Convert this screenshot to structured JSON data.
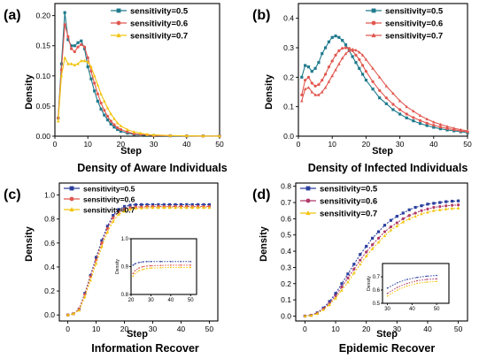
{
  "colors": {
    "s05": "#1f7a8c",
    "s06": "#e0574f",
    "s07": "#f2c40f",
    "s05_dark": "#2b3f9e",
    "s06_dark": "#b03a6a"
  },
  "chart_data": [
    {
      "id": "a",
      "type": "line",
      "panel_label": "(a)",
      "caption": "Density of Aware Individuals",
      "xlabel": "Step",
      "ylabel": "Density",
      "xlim": [
        0,
        50
      ],
      "ylim": [
        0,
        0.22
      ],
      "xticks": [
        "0",
        "10",
        "20",
        "30",
        "40",
        "50"
      ],
      "yticks": [
        "0.00",
        "0.05",
        "0.10",
        "0.15",
        "0.20"
      ],
      "legend_position": "top-right",
      "series": [
        {
          "name": "sensitivity=0.5",
          "marker": "square",
          "color": "#1f7a8c",
          "x": [
            1,
            2,
            3,
            4,
            5,
            6,
            7,
            8,
            9,
            10,
            11,
            12,
            13,
            14,
            15,
            16,
            17,
            18,
            19,
            20,
            22,
            24,
            26,
            28,
            30,
            35,
            40,
            45,
            50
          ],
          "y": [
            0.03,
            0.12,
            0.205,
            0.16,
            0.15,
            0.15,
            0.155,
            0.158,
            0.145,
            0.115,
            0.095,
            0.075,
            0.058,
            0.045,
            0.035,
            0.027,
            0.02,
            0.015,
            0.011,
            0.008,
            0.005,
            0.003,
            0.002,
            0.001,
            0.001,
            0.0005,
            0.0003,
            0.0002,
            0.0001
          ]
        },
        {
          "name": "sensitivity=0.6",
          "marker": "circle",
          "color": "#e0574f",
          "x": [
            1,
            2,
            3,
            4,
            5,
            6,
            7,
            8,
            9,
            10,
            11,
            12,
            13,
            14,
            15,
            16,
            17,
            18,
            19,
            20,
            22,
            24,
            26,
            28,
            30,
            35,
            40,
            45,
            50
          ],
          "y": [
            0.03,
            0.11,
            0.185,
            0.165,
            0.145,
            0.14,
            0.148,
            0.152,
            0.148,
            0.13,
            0.108,
            0.088,
            0.07,
            0.055,
            0.043,
            0.033,
            0.025,
            0.019,
            0.014,
            0.011,
            0.007,
            0.004,
            0.003,
            0.002,
            0.001,
            0.0007,
            0.0004,
            0.0002,
            0.0001
          ]
        },
        {
          "name": "sensitivity=0.7",
          "marker": "triangle",
          "color": "#f2c40f",
          "x": [
            1,
            2,
            3,
            4,
            5,
            6,
            7,
            8,
            9,
            10,
            11,
            12,
            13,
            14,
            15,
            16,
            17,
            18,
            19,
            20,
            22,
            24,
            26,
            28,
            30,
            35,
            40,
            45,
            50
          ],
          "y": [
            0.025,
            0.1,
            0.13,
            0.12,
            0.12,
            0.118,
            0.12,
            0.125,
            0.125,
            0.123,
            0.115,
            0.1,
            0.085,
            0.07,
            0.058,
            0.047,
            0.037,
            0.029,
            0.022,
            0.017,
            0.011,
            0.007,
            0.005,
            0.003,
            0.002,
            0.001,
            0.0006,
            0.0003,
            0.0002
          ]
        }
      ]
    },
    {
      "id": "b",
      "type": "line",
      "panel_label": "(b)",
      "caption": "Density of Infected Individuals",
      "xlabel": "Step",
      "ylabel": "Density",
      "xlim": [
        0,
        50
      ],
      "ylim": [
        0,
        0.45
      ],
      "xticks": [
        "0",
        "10",
        "20",
        "30",
        "40",
        "50"
      ],
      "yticks": [
        "0.0",
        "0.1",
        "0.2",
        "0.3",
        "0.4"
      ],
      "legend_position": "top-right",
      "series": [
        {
          "name": "sensitivity=0.5",
          "marker": "square",
          "color": "#1f7a8c",
          "x": [
            1,
            2,
            3,
            4,
            5,
            6,
            7,
            8,
            9,
            10,
            11,
            12,
            13,
            14,
            15,
            16,
            17,
            18,
            19,
            20,
            22,
            24,
            26,
            28,
            30,
            32,
            34,
            36,
            38,
            40,
            42,
            44,
            46,
            48,
            50
          ],
          "y": [
            0.2,
            0.24,
            0.235,
            0.22,
            0.23,
            0.25,
            0.28,
            0.3,
            0.32,
            0.335,
            0.34,
            0.335,
            0.325,
            0.31,
            0.29,
            0.27,
            0.25,
            0.23,
            0.21,
            0.19,
            0.16,
            0.13,
            0.11,
            0.09,
            0.075,
            0.062,
            0.052,
            0.043,
            0.036,
            0.03,
            0.025,
            0.021,
            0.018,
            0.015,
            0.012
          ]
        },
        {
          "name": "sensitivity=0.6",
          "marker": "circle",
          "color": "#e0574f",
          "x": [
            1,
            2,
            3,
            4,
            5,
            6,
            7,
            8,
            9,
            10,
            11,
            12,
            13,
            14,
            15,
            16,
            17,
            18,
            19,
            20,
            22,
            24,
            26,
            28,
            30,
            32,
            34,
            36,
            38,
            40,
            42,
            44,
            46,
            48,
            50
          ],
          "y": [
            0.14,
            0.19,
            0.2,
            0.18,
            0.17,
            0.175,
            0.19,
            0.21,
            0.235,
            0.255,
            0.275,
            0.29,
            0.298,
            0.3,
            0.298,
            0.29,
            0.275,
            0.26,
            0.24,
            0.22,
            0.185,
            0.155,
            0.13,
            0.108,
            0.09,
            0.075,
            0.063,
            0.053,
            0.044,
            0.037,
            0.031,
            0.026,
            0.022,
            0.018,
            0.015
          ]
        },
        {
          "name": "sensitivity=0.7",
          "marker": "triangle",
          "color": "#e0574f",
          "x": [
            1,
            2,
            3,
            4,
            5,
            6,
            7,
            8,
            9,
            10,
            11,
            12,
            13,
            14,
            15,
            16,
            17,
            18,
            19,
            20,
            22,
            24,
            26,
            28,
            30,
            32,
            34,
            36,
            38,
            40,
            42,
            44,
            46,
            48,
            50
          ],
          "y": [
            0.12,
            0.16,
            0.165,
            0.15,
            0.14,
            0.14,
            0.15,
            0.165,
            0.185,
            0.205,
            0.225,
            0.245,
            0.265,
            0.28,
            0.29,
            0.295,
            0.292,
            0.285,
            0.275,
            0.26,
            0.23,
            0.2,
            0.17,
            0.145,
            0.12,
            0.1,
            0.085,
            0.07,
            0.058,
            0.048,
            0.04,
            0.033,
            0.027,
            0.022,
            0.018
          ]
        }
      ]
    },
    {
      "id": "c",
      "type": "line",
      "panel_label": "(c)",
      "caption": "Information Recover",
      "xlabel": "Step",
      "ylabel": "Density",
      "xlim": [
        -3,
        53
      ],
      "ylim": [
        -0.05,
        1.1
      ],
      "xticks": [
        "0",
        "10",
        "20",
        "30",
        "40",
        "50"
      ],
      "yticks": [
        "0.0",
        "0.2",
        "0.4",
        "0.6",
        "0.8",
        "1.0"
      ],
      "legend_position": "top-left",
      "series": [
        {
          "name": "sensitivity=0.5",
          "marker": "square",
          "color": "#2b3f9e",
          "x": [
            0,
            2,
            4,
            6,
            8,
            10,
            12,
            14,
            16,
            18,
            20,
            22,
            24,
            26,
            28,
            30,
            32,
            34,
            36,
            38,
            40,
            42,
            44,
            46,
            48,
            50
          ],
          "y": [
            0,
            0.01,
            0.05,
            0.18,
            0.33,
            0.48,
            0.62,
            0.74,
            0.83,
            0.88,
            0.905,
            0.915,
            0.92,
            0.92,
            0.92,
            0.92,
            0.92,
            0.92,
            0.92,
            0.92,
            0.92,
            0.92,
            0.92,
            0.92,
            0.92,
            0.92
          ]
        },
        {
          "name": "sensitivity=0.6",
          "marker": "circle",
          "color": "#e0574f",
          "x": [
            0,
            2,
            4,
            6,
            8,
            10,
            12,
            14,
            16,
            18,
            20,
            22,
            24,
            26,
            28,
            30,
            32,
            34,
            36,
            38,
            40,
            42,
            44,
            46,
            48,
            50
          ],
          "y": [
            0,
            0.01,
            0.05,
            0.17,
            0.32,
            0.46,
            0.6,
            0.72,
            0.81,
            0.86,
            0.885,
            0.895,
            0.9,
            0.9,
            0.905,
            0.905,
            0.905,
            0.905,
            0.905,
            0.905,
            0.905,
            0.905,
            0.905,
            0.905,
            0.905,
            0.905
          ]
        },
        {
          "name": "sensitivity=0.7",
          "marker": "triangle",
          "color": "#f2c40f",
          "x": [
            0,
            2,
            4,
            6,
            8,
            10,
            12,
            14,
            16,
            18,
            20,
            22,
            24,
            26,
            28,
            30,
            32,
            34,
            36,
            38,
            40,
            42,
            44,
            46,
            48,
            50
          ],
          "y": [
            0,
            0.01,
            0.04,
            0.15,
            0.29,
            0.43,
            0.57,
            0.69,
            0.78,
            0.84,
            0.865,
            0.88,
            0.89,
            0.89,
            0.895,
            0.895,
            0.895,
            0.895,
            0.895,
            0.895,
            0.895,
            0.895,
            0.895,
            0.895,
            0.895,
            0.895
          ]
        }
      ],
      "inset": {
        "xlim": [
          20,
          53
        ],
        "ylim": [
          0.8,
          1.0
        ],
        "xticks": [
          "20",
          "30",
          "40",
          "50"
        ],
        "yticks": [
          "0.8",
          "0.9",
          "1.0"
        ],
        "ylabel": "Density",
        "series": [
          {
            "x": [
              21,
              22,
              24,
              26,
              28,
              30,
              35,
              40,
              45,
              50
            ],
            "y": [
              0.905,
              0.91,
              0.915,
              0.917,
              0.918,
              0.918,
              0.918,
              0.918,
              0.918,
              0.918
            ]
          },
          {
            "x": [
              21,
              22,
              24,
              26,
              28,
              30,
              35,
              40,
              45,
              50
            ],
            "y": [
              0.875,
              0.885,
              0.895,
              0.9,
              0.902,
              0.903,
              0.904,
              0.905,
              0.905,
              0.905
            ]
          },
          {
            "x": [
              21,
              22,
              24,
              26,
              28,
              30,
              35,
              40,
              45,
              50
            ],
            "y": [
              0.865,
              0.875,
              0.885,
              0.89,
              0.893,
              0.895,
              0.896,
              0.897,
              0.897,
              0.897
            ]
          }
        ]
      }
    },
    {
      "id": "d",
      "type": "line",
      "panel_label": "(d)",
      "caption": "Epidemic Recover",
      "xlabel": "Step",
      "ylabel": "Density",
      "xlim": [
        -3,
        53
      ],
      "ylim": [
        -0.03,
        0.82
      ],
      "xticks": [
        "0",
        "10",
        "20",
        "30",
        "40",
        "50"
      ],
      "yticks": [
        "0.0",
        "0.1",
        "0.2",
        "0.3",
        "0.4",
        "0.5",
        "0.6",
        "0.7",
        "0.8"
      ],
      "legend_position": "top-left",
      "series": [
        {
          "name": "sensitivity=0.5",
          "marker": "square",
          "color": "#2b3f9e",
          "x": [
            0,
            2,
            4,
            6,
            8,
            10,
            12,
            14,
            16,
            18,
            20,
            22,
            24,
            26,
            28,
            30,
            32,
            34,
            36,
            38,
            40,
            42,
            44,
            46,
            48,
            50
          ],
          "y": [
            0,
            0.005,
            0.02,
            0.05,
            0.09,
            0.14,
            0.2,
            0.26,
            0.32,
            0.38,
            0.43,
            0.48,
            0.52,
            0.56,
            0.59,
            0.615,
            0.635,
            0.655,
            0.67,
            0.68,
            0.69,
            0.695,
            0.7,
            0.705,
            0.708,
            0.71
          ]
        },
        {
          "name": "sensitivity=0.6",
          "marker": "circle",
          "color": "#b03a6a",
          "x": [
            0,
            2,
            4,
            6,
            8,
            10,
            12,
            14,
            16,
            18,
            20,
            22,
            24,
            26,
            28,
            30,
            32,
            34,
            36,
            38,
            40,
            42,
            44,
            46,
            48,
            50
          ],
          "y": [
            0,
            0.005,
            0.018,
            0.045,
            0.08,
            0.125,
            0.18,
            0.235,
            0.29,
            0.345,
            0.395,
            0.44,
            0.48,
            0.52,
            0.55,
            0.575,
            0.6,
            0.62,
            0.635,
            0.65,
            0.66,
            0.67,
            0.675,
            0.68,
            0.683,
            0.685
          ]
        },
        {
          "name": "sensitivity=0.7",
          "marker": "triangle",
          "color": "#f2c40f",
          "x": [
            0,
            2,
            4,
            6,
            8,
            10,
            12,
            14,
            16,
            18,
            20,
            22,
            24,
            26,
            28,
            30,
            32,
            34,
            36,
            38,
            40,
            42,
            44,
            46,
            48,
            50
          ],
          "y": [
            0,
            0.004,
            0.015,
            0.04,
            0.07,
            0.11,
            0.16,
            0.21,
            0.265,
            0.32,
            0.37,
            0.415,
            0.455,
            0.495,
            0.53,
            0.555,
            0.58,
            0.6,
            0.615,
            0.63,
            0.64,
            0.65,
            0.655,
            0.66,
            0.663,
            0.665
          ]
        }
      ],
      "inset": {
        "xlim": [
          28,
          55
        ],
        "ylim": [
          0.5,
          0.8
        ],
        "xticks": [
          "30",
          "40",
          "50"
        ],
        "yticks": [
          "0.5",
          "0.6",
          "0.7"
        ],
        "ylabel": "Density",
        "series": [
          {
            "x": [
              30,
              34,
              38,
              42,
              46,
              50
            ],
            "y": [
              0.615,
              0.655,
              0.68,
              0.695,
              0.705,
              0.71
            ]
          },
          {
            "x": [
              30,
              34,
              38,
              42,
              46,
              50
            ],
            "y": [
              0.575,
              0.62,
              0.65,
              0.67,
              0.68,
              0.685
            ]
          },
          {
            "x": [
              30,
              34,
              38,
              42,
              46,
              50
            ],
            "y": [
              0.555,
              0.6,
              0.63,
              0.65,
              0.66,
              0.665
            ]
          }
        ]
      }
    }
  ]
}
